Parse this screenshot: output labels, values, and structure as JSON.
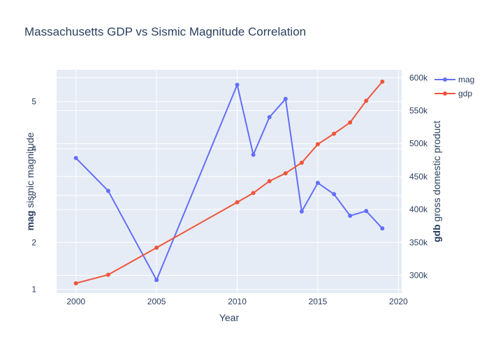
{
  "chart_data": {
    "type": "line",
    "title": "Massachusetts GDP vs Sismic Magnitude Correlation",
    "xlabel": "Year",
    "ylabel_bold": "mag",
    "ylabel_rest": " sismic magnitude",
    "y2label_bold": "gdb",
    "y2label_rest": " gross domestic product",
    "xlim": [
      1998.8,
      2020.2
    ],
    "ylim": [
      0.92,
      5.68
    ],
    "y2lim": [
      273000,
      612000
    ],
    "x_ticks": [
      2000,
      2005,
      2010,
      2015,
      2020
    ],
    "y_ticks": [
      1,
      2,
      3,
      4,
      5
    ],
    "y2_ticks": [
      300000,
      350000,
      400000,
      450000,
      500000,
      550000,
      600000
    ],
    "y2_tick_labels": [
      "300k",
      "350k",
      "400k",
      "450k",
      "500k",
      "550k",
      "600k"
    ],
    "grid": true,
    "legend_position": "top-right",
    "x": [
      2000,
      2002,
      2005,
      2010,
      2011,
      2012,
      2013,
      2014,
      2015,
      2016,
      2017,
      2018,
      2019
    ],
    "series": [
      {
        "name": "mag",
        "axis": "left",
        "color": "#636efa",
        "values": [
          3.8,
          3.1,
          1.2,
          5.36,
          3.87,
          4.67,
          5.06,
          2.66,
          3.27,
          3.03,
          2.57,
          2.67,
          2.3
        ]
      },
      {
        "name": "gdp",
        "axis": "right",
        "color": "#ef553b",
        "values": [
          288000,
          301000,
          342000,
          411000,
          425000,
          443000,
          455000,
          471000,
          499000,
          515000,
          532000,
          565000,
          594000
        ]
      }
    ]
  }
}
